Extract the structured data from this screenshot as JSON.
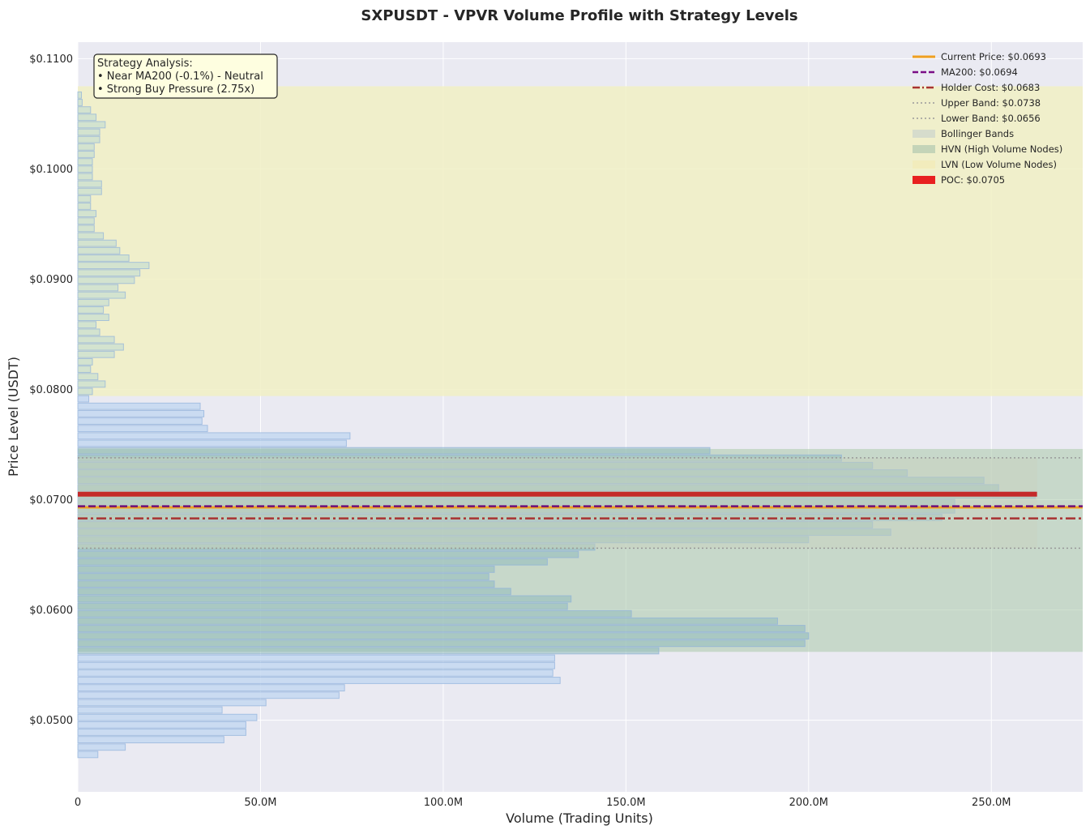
{
  "chart_data": {
    "type": "bar",
    "orientation": "horizontal",
    "title": "SXPUSDT - VPVR Volume Profile with Strategy Levels",
    "xlabel": "Volume (Trading Units)",
    "ylabel": "Price Level (USDT)",
    "xlim": [
      0,
      275
    ],
    "ylim": [
      0.0435,
      0.1115
    ],
    "x_ticks": [
      0,
      50,
      100,
      150,
      200,
      250
    ],
    "x_tick_labels": [
      "0",
      "50.0M",
      "100.0M",
      "150.0M",
      "200.0M",
      "250.0M"
    ],
    "y_ticks": [
      0.05,
      0.06,
      0.07,
      0.08,
      0.09,
      0.1,
      0.11
    ],
    "y_tick_labels": [
      "$0.0500",
      "$0.0600",
      "$0.0700",
      "$0.0800",
      "$0.0900",
      "$0.1000",
      "$0.1100"
    ],
    "grid": true,
    "legend_position": "top-right",
    "bin_start": 0.0466,
    "bin_width": 0.000672,
    "volumes": [
      5.5,
      13,
      40,
      46,
      46,
      49,
      39.5,
      51.5,
      71.5,
      73,
      132,
      130,
      130.5,
      130.5,
      159,
      199,
      200,
      199,
      191.5,
      151.5,
      134,
      135,
      118.5,
      114,
      112.5,
      114,
      128.5,
      137,
      141.5,
      200,
      222.5,
      217.5,
      236.5,
      240,
      240,
      262,
      252,
      248,
      227,
      217.5,
      209,
      173,
      73.5,
      74.5,
      35.5,
      34,
      34.5,
      33.5,
      3,
      4,
      7.5,
      5.5,
      3.5,
      4,
      10,
      12.5,
      10,
      6,
      5,
      8.5,
      7,
      8.5,
      13,
      11,
      15.5,
      17,
      19.5,
      14,
      11.5,
      10.5,
      7,
      4.5,
      4.5,
      5,
      3.5,
      3.5,
      6.5,
      6.5,
      4,
      4,
      4,
      4.5,
      4.5,
      6,
      6,
      7.5,
      5,
      3.5,
      1.2,
      1
    ],
    "hvn_range": [
      0.0562,
      0.0746
    ],
    "lvn_range": [
      0.0794,
      0.1075
    ],
    "bollinger_bands": {
      "upper": 0.0738,
      "lower": 0.0656,
      "volume_extent": 262.5
    },
    "levels": {
      "current_price": 0.0693,
      "ma200": 0.0694,
      "holder_cost": 0.0683,
      "poc": 0.0705
    },
    "legend": [
      {
        "label": "Current Price: $0.0693",
        "style": "solid",
        "color": "#f0a020"
      },
      {
        "label": "MA200: $0.0694",
        "style": "dashed",
        "color": "#7a0d85"
      },
      {
        "label": "Holder Cost: $0.0683",
        "style": "dashdot",
        "color": "#a83232"
      },
      {
        "label": "Upper Band: $0.0738",
        "style": "dotted",
        "color": "#999999"
      },
      {
        "label": "Lower Band: $0.0656",
        "style": "dotted",
        "color": "#999999"
      },
      {
        "label": "Bollinger Bands",
        "style": "patch",
        "color": "#d6dccc"
      },
      {
        "label": "HVN (High Volume Nodes)",
        "style": "patch",
        "color": "#c4d4b8"
      },
      {
        "label": "LVN (Low Volume Nodes)",
        "style": "patch",
        "color": "#f2ecbc"
      },
      {
        "label": "POC: $0.0705",
        "style": "patch",
        "color": "#e82020"
      }
    ],
    "annotation": {
      "lines": [
        "Strategy Analysis:",
        "• Near MA200 (-0.1%) - Neutral",
        "• Strong Buy Pressure (2.75x)"
      ]
    },
    "colors": {
      "plot_background": "#eaeaf2",
      "bar_fill": "#c6d9f1",
      "bar_edge": "#8fb1dc",
      "hvn": "#a9c8a9",
      "lvn": "#f1f0c4",
      "bollinger": "#c9d2bf",
      "poc": "#c42a2a",
      "current_price": "#f0a020",
      "ma200": "#6f0f78",
      "holder_cost": "#a83232",
      "band_line": "#999999",
      "annotation_bg": "#fefee0"
    }
  }
}
